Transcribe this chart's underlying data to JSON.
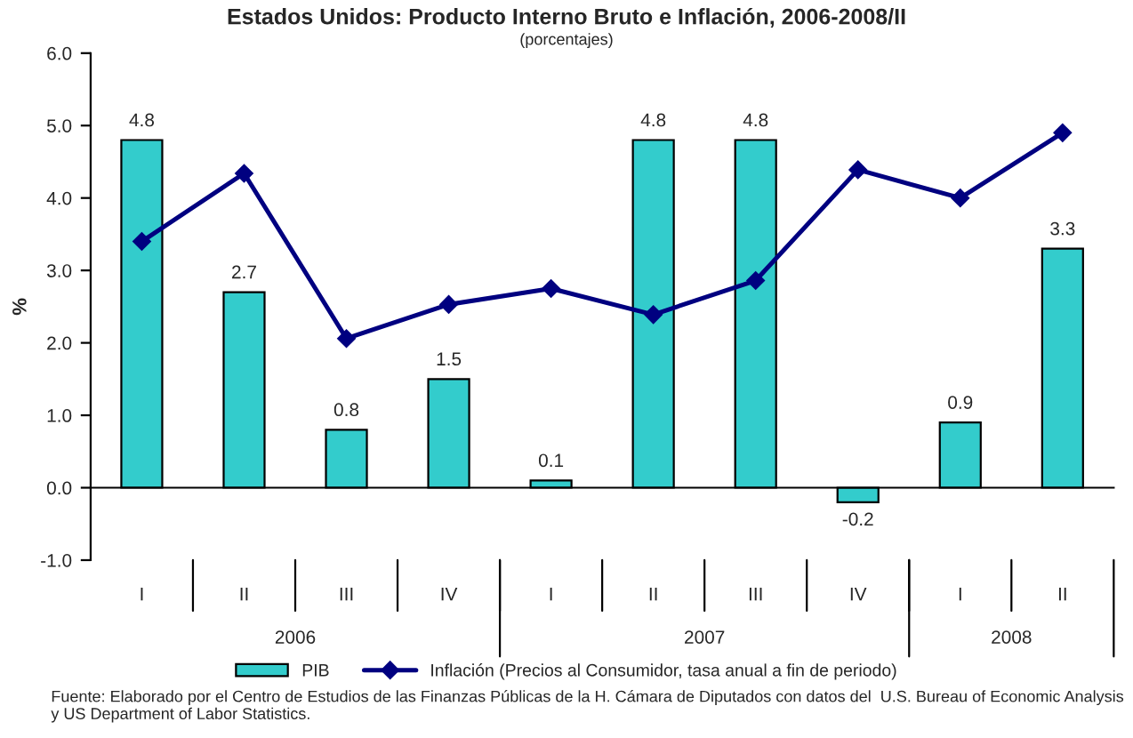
{
  "chart_data": {
    "type": "bar",
    "title": "Estados Unidos: Producto Interno Bruto e Inflación, 2006-2008/II",
    "subtitle": "(porcentajes)",
    "ylabel": "%",
    "categories": [
      "I",
      "II",
      "III",
      "IV",
      "I",
      "II",
      "III",
      "IV",
      "I",
      "II"
    ],
    "series": [
      {
        "name": "PIB",
        "type": "bar",
        "color": "#33cccc",
        "values": [
          4.8,
          2.7,
          0.8,
          1.5,
          0.1,
          4.8,
          4.8,
          -0.2,
          0.9,
          3.3
        ],
        "value_labels": [
          "4.8",
          "2.7",
          "0.8",
          "1.5",
          "0.1",
          "4.8",
          "4.8",
          "-0.2",
          "0.9",
          "3.3"
        ]
      },
      {
        "name": "Inflación (Precios al Consumidor, tasa anual a fin de periodo)",
        "type": "line",
        "color": "#000080",
        "marker": "diamond",
        "values": [
          3.4,
          4.34,
          2.06,
          2.53,
          2.75,
          2.39,
          2.86,
          4.39,
          4.0,
          4.9
        ]
      }
    ],
    "ylim": [
      -1,
      6
    ],
    "yticks": [
      {
        "value": -1,
        "label": "-1.0"
      },
      {
        "value": 0,
        "label": "0.0"
      },
      {
        "value": 1,
        "label": "1.0"
      },
      {
        "value": 2,
        "label": "2.0"
      },
      {
        "value": 3,
        "label": "3.0"
      },
      {
        "value": 4,
        "label": "4.0"
      },
      {
        "value": 5,
        "label": "5.0"
      },
      {
        "value": 6,
        "label": "6.0"
      }
    ],
    "legend": "bottom",
    "annotations": [
      "2006",
      "2007",
      "2008",
      "Fuente: Elaborado por el Centro de Estudios de las Finanzas Públicas de la H. Cámara de Diputados con datos del  U.S. Bureau of Economic Analysis y US Department of Labor Statistics."
    ]
  }
}
